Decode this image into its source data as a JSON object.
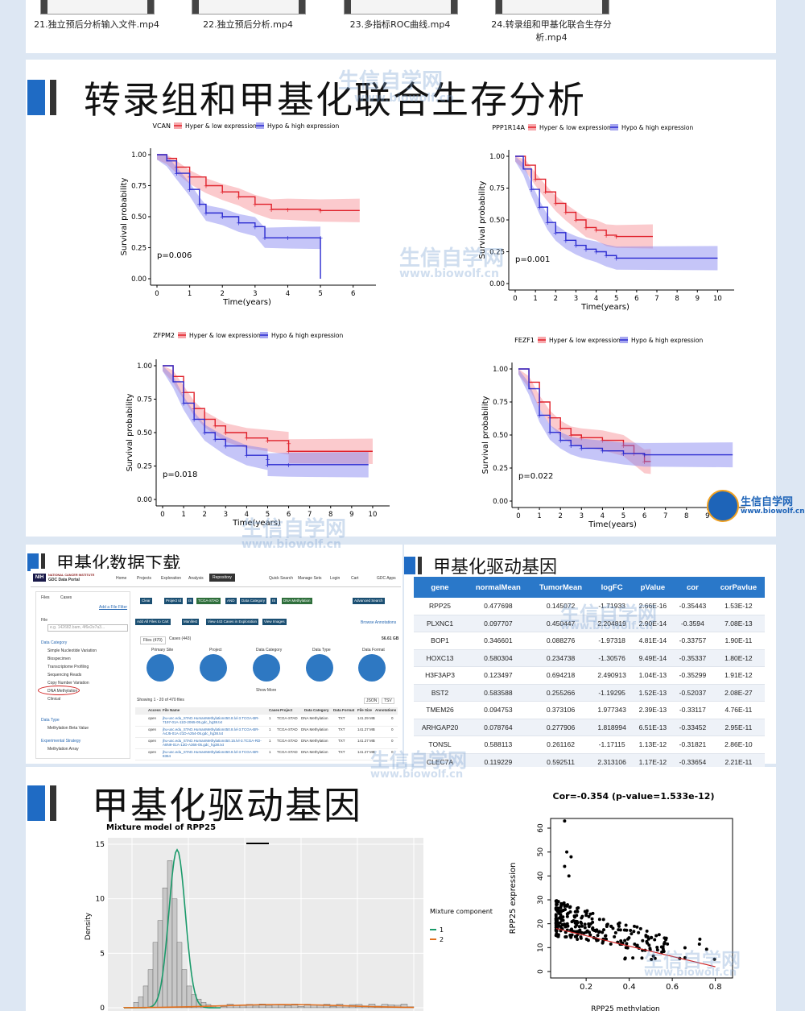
{
  "videos": [
    {
      "label": "21.独立预后分析输入文件.mp4"
    },
    {
      "label": "22.独立预后分析.mp4"
    },
    {
      "label": "23.多指标ROC曲线.mp4"
    },
    {
      "label": "24.转录组和甲基化联合生存分析.mp4"
    }
  ],
  "section1": {
    "title": "转录组和甲基化联合生存分析"
  },
  "km_common": {
    "legend_hyper": "Hyper & low expression",
    "legend_hypo": "Hypo & high expression",
    "ylabel": "Survival probability",
    "xlabel": "Time(years)",
    "yticks": [
      "0.00",
      "0.25",
      "0.50",
      "0.75",
      "1.00"
    ],
    "color_hyper": "#e0202a",
    "color_hypo": "#2b2bd0"
  },
  "km_plots": [
    {
      "gene": "VCAN",
      "pvalue": "p=0.006",
      "xmax": 6.5,
      "xticks": [
        "0",
        "1",
        "2",
        "3",
        "4",
        "5",
        "6"
      ],
      "hyper": [
        [
          0,
          1
        ],
        [
          0.3,
          0.97
        ],
        [
          0.6,
          0.9
        ],
        [
          1,
          0.82
        ],
        [
          1.5,
          0.75
        ],
        [
          2,
          0.7
        ],
        [
          2.5,
          0.66
        ],
        [
          3,
          0.6
        ],
        [
          3.5,
          0.56
        ],
        [
          4,
          0.56
        ],
        [
          5,
          0.55
        ],
        [
          6.2,
          0.55
        ]
      ],
      "hypo": [
        [
          0,
          1
        ],
        [
          0.3,
          0.95
        ],
        [
          0.6,
          0.85
        ],
        [
          1,
          0.72
        ],
        [
          1.3,
          0.6
        ],
        [
          1.5,
          0.53
        ],
        [
          2,
          0.5
        ],
        [
          2.5,
          0.45
        ],
        [
          3,
          0.42
        ],
        [
          3.3,
          0.33
        ],
        [
          4,
          0.33
        ],
        [
          5,
          0.33
        ],
        [
          5,
          0
        ]
      ]
    },
    {
      "gene": "PPP1R14A",
      "pvalue": "p=0.001",
      "xmax": 10.5,
      "xticks": [
        "0",
        "1",
        "2",
        "3",
        "4",
        "5",
        "6",
        "7",
        "8",
        "9",
        "10"
      ],
      "hyper": [
        [
          0,
          1
        ],
        [
          0.5,
          0.93
        ],
        [
          1,
          0.82
        ],
        [
          1.5,
          0.72
        ],
        [
          2,
          0.63
        ],
        [
          2.5,
          0.56
        ],
        [
          3,
          0.5
        ],
        [
          3.5,
          0.44
        ],
        [
          4,
          0.42
        ],
        [
          4.5,
          0.38
        ],
        [
          5,
          0.37
        ],
        [
          6.8,
          0.37
        ]
      ],
      "hypo": [
        [
          0,
          1
        ],
        [
          0.4,
          0.9
        ],
        [
          0.8,
          0.74
        ],
        [
          1.2,
          0.6
        ],
        [
          1.6,
          0.48
        ],
        [
          2,
          0.4
        ],
        [
          2.5,
          0.34
        ],
        [
          3,
          0.3
        ],
        [
          3.5,
          0.27
        ],
        [
          4,
          0.25
        ],
        [
          4.5,
          0.22
        ],
        [
          5,
          0.2
        ],
        [
          10,
          0.2
        ]
      ]
    },
    {
      "gene": "ZFPM2",
      "pvalue": "p=0.018",
      "xmax": 10.5,
      "xticks": [
        "0",
        "1",
        "2",
        "3",
        "4",
        "5",
        "6",
        "7",
        "8",
        "9",
        "10"
      ],
      "hyper": [
        [
          0,
          1
        ],
        [
          0.5,
          0.92
        ],
        [
          1,
          0.8
        ],
        [
          1.5,
          0.68
        ],
        [
          2,
          0.6
        ],
        [
          2.5,
          0.55
        ],
        [
          3,
          0.5
        ],
        [
          4,
          0.46
        ],
        [
          5,
          0.44
        ],
        [
          6,
          0.42
        ],
        [
          6,
          0.36
        ],
        [
          10,
          0.36
        ]
      ],
      "hypo": [
        [
          0,
          1
        ],
        [
          0.5,
          0.88
        ],
        [
          1,
          0.72
        ],
        [
          1.5,
          0.6
        ],
        [
          2,
          0.5
        ],
        [
          2.5,
          0.45
        ],
        [
          3,
          0.4
        ],
        [
          4,
          0.33
        ],
        [
          5,
          0.3
        ],
        [
          5,
          0.26
        ],
        [
          6,
          0.26
        ],
        [
          9.8,
          0.26
        ]
      ]
    },
    {
      "gene": "FEZF1",
      "pvalue": "p=0.022",
      "xmax": 10.5,
      "xticks": [
        "0",
        "1",
        "2",
        "3",
        "4",
        "5",
        "6",
        "7",
        "8",
        "9",
        "10"
      ],
      "hyper": [
        [
          0,
          1
        ],
        [
          0.5,
          0.9
        ],
        [
          1,
          0.75
        ],
        [
          1.5,
          0.63
        ],
        [
          2,
          0.55
        ],
        [
          2.5,
          0.5
        ],
        [
          3,
          0.48
        ],
        [
          4,
          0.46
        ],
        [
          5,
          0.42
        ],
        [
          5.5,
          0.36
        ],
        [
          6,
          0.3
        ],
        [
          6.3,
          0.3
        ]
      ],
      "hypo": [
        [
          0,
          1
        ],
        [
          0.5,
          0.85
        ],
        [
          1,
          0.65
        ],
        [
          1.5,
          0.52
        ],
        [
          2,
          0.46
        ],
        [
          2.5,
          0.42
        ],
        [
          3,
          0.4
        ],
        [
          4,
          0.38
        ],
        [
          5,
          0.36
        ],
        [
          6,
          0.35
        ],
        [
          10.2,
          0.35
        ]
      ]
    }
  ],
  "section2": {
    "title": "甲基化数据下载"
  },
  "gdc": {
    "org": "NATIONAL CANCER INSTITUTE",
    "portal": "GDC Data Portal",
    "nav": [
      "Home",
      "Projects",
      "Exploration",
      "Analysis",
      "Repository"
    ],
    "nav_right": [
      "Quick Search",
      "Manage Sets",
      "Login",
      "Cart",
      "GDC Apps"
    ],
    "tabs": [
      "Files",
      "Cases"
    ],
    "add_filter": "Add a File Filter",
    "file_label": "File",
    "search_placeholder": "e.g. 142682.bam, 4f6e2e7a3...",
    "data_category": "Data Category",
    "categories": [
      "Simple Nucleotide Variation",
      "Biospecimen",
      "Transcriptome Profiling",
      "Sequencing Reads",
      "Copy Number Variation",
      "DNA Methylation",
      "Clinical"
    ],
    "data_type": "Data Type",
    "data_type_item": "Methylation Beta Value",
    "experimental_strategy": "Experimental Strategy",
    "exp_item": "Methylation Array",
    "query": [
      "Clear",
      "Project Id",
      "IS",
      "TCGA-STAD",
      "AND",
      "Data Category",
      "IS",
      "DNA Methylation"
    ],
    "advanced_search": "Advanced Search",
    "actions": [
      "Add All Files to Cart",
      "Manifest",
      "View 443 Cases in Exploration",
      "View Images"
    ],
    "browse": "Browse Annotations",
    "subtabs": [
      "Files (470)",
      "Cases (443)"
    ],
    "size": "56.61 GB",
    "facets": [
      "Primary Site",
      "Project",
      "Data Category",
      "Data Type",
      "Data Format"
    ],
    "show_more": "Show More",
    "showing": "Showing 1 - 20 of 470 files",
    "formats": [
      "JSON",
      "TSV"
    ],
    "cols": [
      "Access",
      "File Name",
      "Cases",
      "Project",
      "Data Category",
      "Data Format",
      "File Size",
      "Annotations"
    ],
    "rows": [
      {
        "access": "open",
        "file": "jhu-usc.edu_STAD.HumanMethylation450.8.lvl-3.TCGA-BR-7197-01A-11D-2065-05.gdc_hg38.txt",
        "cases": "1",
        "project": "TCGA-STAD",
        "cat": "DNA Methylation",
        "fmt": "TXT",
        "size": "141.29 MB",
        "ann": "0"
      },
      {
        "access": "open",
        "file": "jhu-usc.edu_STAD.HumanMethylation450.8.lvl-3.TCGA-BR-A4J5-01A-21D-A254-05.gdc_hg38.txt",
        "cases": "1",
        "project": "TCGA-STAD",
        "cat": "DNA Methylation",
        "fmt": "TXT",
        "size": "141.27 MB",
        "ann": "0"
      },
      {
        "access": "open",
        "file": "jhu-usc.edu_STAD.HumanMethylation450.15.lvl-3.TCGA-RD-A8N9-01A-12D-A366-05.gdc_hg38.txt",
        "cases": "1",
        "project": "TCGA-STAD",
        "cat": "DNA Methylation",
        "fmt": "TXT",
        "size": "141.27 MB",
        "ann": "0"
      },
      {
        "access": "open",
        "file": "jhu-usc.edu_STAD.HumanMethylation450.8.lvl-3.TCGA-BR-8364",
        "cases": "1",
        "project": "TCGA-STAD",
        "cat": "DNA Methylation",
        "fmt": "TXT",
        "size": "141.27 MB",
        "ann": "0"
      }
    ]
  },
  "section3": {
    "title": "甲基化驱动基因"
  },
  "gene_table": {
    "headers": [
      "gene",
      "normalMean",
      "TumorMean",
      "logFC",
      "pValue",
      "cor",
      "corPavlue"
    ],
    "rows": [
      [
        "RPP25",
        "0.477698",
        "0.145072",
        "-1.71933",
        "2.66E-16",
        "-0.35443",
        "1.53E-12"
      ],
      [
        "PLXNC1",
        "0.097707",
        "0.450447",
        "2.204819",
        "2.90E-14",
        "-0.3594",
        "7.08E-13"
      ],
      [
        "BOP1",
        "0.346601",
        "0.088276",
        "-1.97318",
        "4.81E-14",
        "-0.33757",
        "1.90E-11"
      ],
      [
        "HOXC13",
        "0.580304",
        "0.234738",
        "-1.30576",
        "9.49E-14",
        "-0.35337",
        "1.80E-12"
      ],
      [
        "H3F3AP3",
        "0.123497",
        "0.694218",
        "2.490913",
        "1.04E-13",
        "-0.35299",
        "1.91E-12"
      ],
      [
        "BST2",
        "0.583588",
        "0.255266",
        "-1.19295",
        "1.52E-13",
        "-0.52037",
        "2.08E-27"
      ],
      [
        "TMEM26",
        "0.094753",
        "0.373106",
        "1.977343",
        "2.39E-13",
        "-0.33117",
        "4.76E-11"
      ],
      [
        "ARHGAP20",
        "0.078764",
        "0.277906",
        "1.818994",
        "6.51E-13",
        "-0.33452",
        "2.95E-11"
      ],
      [
        "TONSL",
        "0.588113",
        "0.261162",
        "-1.17115",
        "1.13E-12",
        "-0.31821",
        "2.86E-10"
      ],
      [
        "CLEC7A",
        "0.119229",
        "0.592511",
        "2.313106",
        "1.17E-12",
        "-0.33654",
        "2.21E-11"
      ]
    ]
  },
  "section4": {
    "title": "甲基化驱动基因"
  },
  "mixture": {
    "title": "Mixture model of RPP25",
    "ylabel": "Density",
    "yticks": [
      "0",
      "5",
      "10",
      "15"
    ],
    "legend_title": "Mixture component",
    "legend_items": [
      "1",
      "2"
    ],
    "colors": [
      "#1a9a6a",
      "#e07020"
    ]
  },
  "scatter": {
    "title": "Cor=-0.354 (p-value=1.533e-12)",
    "ylabel": "RPP25 expression",
    "xlabel": "RPP25 methylation",
    "yticks": [
      "0",
      "10",
      "20",
      "30",
      "40",
      "50",
      "60"
    ],
    "xticks": [
      "0.2",
      "0.4",
      "0.6",
      "0.8"
    ],
    "line_color": "#d02020"
  },
  "watermark": {
    "cn": "生信自学网",
    "url": "www.biowolf.cn"
  },
  "logo": {
    "cn": "生信自学网",
    "url": "www.biowolf.cn"
  }
}
